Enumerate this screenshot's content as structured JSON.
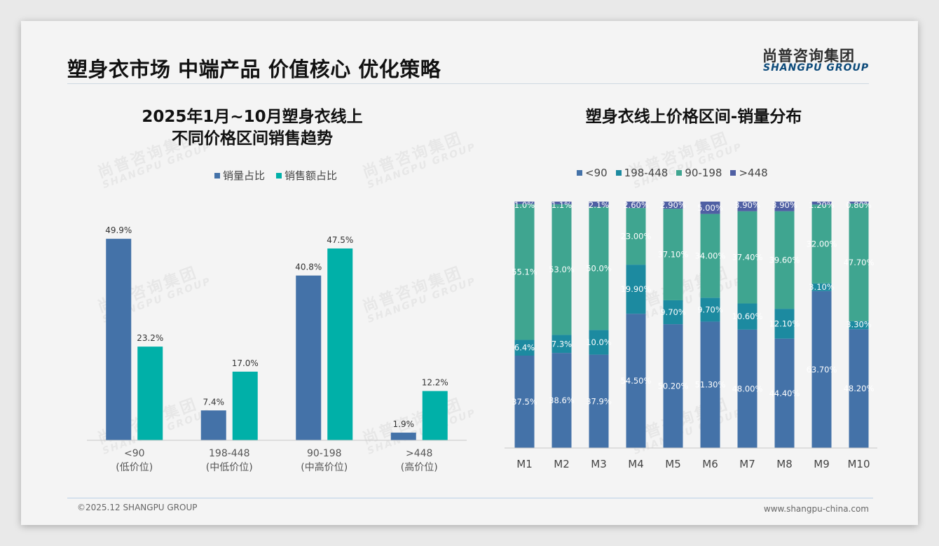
{
  "header": {
    "title": "塑身衣市场 中端产品 价值核心 优化策略",
    "logo_cn": "尚普咨询集团",
    "logo_en": "SHANGPU GROUP"
  },
  "footer": {
    "copyright": "©2025.12 SHANGPU GROUP",
    "url": "www.shangpu-china.com"
  },
  "watermark": {
    "cn": "尚普咨询集团",
    "en": "SHANGPU GROUP"
  },
  "chart_data": [
    {
      "type": "bar",
      "title_line1": "2025年1月~10月塑身衣线上",
      "title_line2": "不同价格区间销售趋势",
      "categories": [
        "<90",
        "198-448",
        "90-198",
        ">448"
      ],
      "category_sublabels": [
        "(低价位)",
        "(中低价位)",
        "(中高价位)",
        "(高价位)"
      ],
      "series": [
        {
          "name": "销量占比",
          "color": "#4472a8",
          "values": [
            49.9,
            7.4,
            40.8,
            1.9
          ]
        },
        {
          "name": "销售额占比",
          "color": "#00b0a8",
          "values": [
            23.2,
            17.0,
            47.5,
            12.2
          ]
        }
      ],
      "value_unit": "%",
      "ylim": [
        0,
        52
      ],
      "legend_position": "top-center",
      "grid": false
    },
    {
      "type": "bar",
      "stacked": true,
      "title": "塑身衣线上价格区间-销量分布",
      "categories": [
        "M1",
        "M2",
        "M3",
        "M4",
        "M5",
        "M6",
        "M7",
        "M8",
        "M9",
        "M10"
      ],
      "series": [
        {
          "name": "<90",
          "color": "#4472a8",
          "values": [
            37.5,
            38.6,
            37.9,
            54.5,
            50.2,
            51.3,
            48.0,
            44.4,
            63.7,
            48.2
          ],
          "labels": [
            "37.5%",
            "38.6%",
            "37.9%",
            "54.50%",
            "50.20%",
            "51.30%",
            "48.00%",
            "44.40%",
            "63.70%",
            "48.20%"
          ]
        },
        {
          "name": "198-448",
          "color": "#1c8aa0",
          "values": [
            6.4,
            7.3,
            10.0,
            19.9,
            9.7,
            9.7,
            10.6,
            12.1,
            3.1,
            3.3
          ],
          "labels": [
            "6.4%",
            "7.3%",
            "10.0%",
            "19.90%",
            "9.70%",
            "9.70%",
            "10.60%",
            "12.10%",
            "3.10%",
            "3.30%"
          ]
        },
        {
          "name": "90-198",
          "color": "#3fa590",
          "values": [
            55.1,
            53.0,
            50.0,
            23.0,
            37.1,
            34.0,
            37.4,
            39.6,
            32.0,
            47.7
          ],
          "labels": [
            "55.1%",
            "53.0%",
            "50.0%",
            "23.00%",
            "37.10%",
            "34.00%",
            "37.40%",
            "39.60%",
            "32.00%",
            "47.70%"
          ]
        },
        {
          "name": ">448",
          "color": "#4f5fa3",
          "values": [
            1.0,
            1.1,
            2.1,
            2.6,
            2.9,
            5.0,
            3.9,
            3.9,
            1.2,
            0.8
          ],
          "labels": [
            "1.0%",
            "1.1%",
            "2.1%",
            "2.60%",
            "2.90%",
            "5.00%",
            "3.90%",
            "3.90%",
            "1.20%",
            "0.80%"
          ]
        }
      ],
      "ylim": [
        0,
        100
      ],
      "legend_position": "top-center",
      "grid": false
    }
  ]
}
